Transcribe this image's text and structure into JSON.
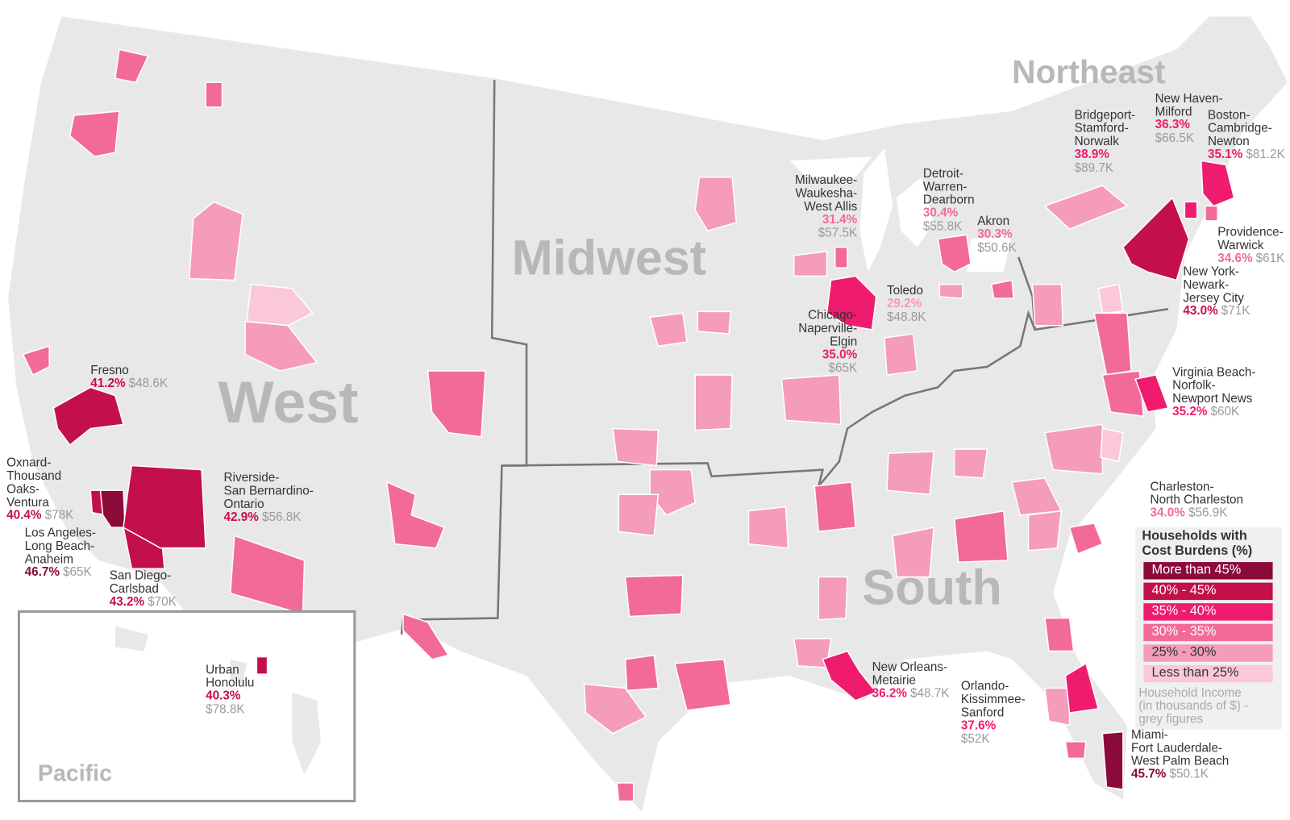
{
  "regions": [
    "West",
    "Midwest",
    "South",
    "Northeast",
    "Pacific"
  ],
  "legend": {
    "title": [
      "Households with",
      "Cost Burdens (%)"
    ],
    "items": [
      {
        "label": "More than 45%",
        "color": "#8b0a3a"
      },
      {
        "label": "40% - 45%",
        "color": "#c4104a"
      },
      {
        "label": "35% - 40%",
        "color": "#ee1b6e"
      },
      {
        "label": "30% - 35%",
        "color": "#f26a9a"
      },
      {
        "label": "25% - 30%",
        "color": "#f59bbc"
      },
      {
        "label": "Less than 25%",
        "color": "#fbc8da"
      }
    ],
    "note": [
      "Household Income",
      "(in thousands of $) -",
      "grey figures"
    ]
  },
  "metros": [
    {
      "name": [
        "Fresno"
      ],
      "pct": "41.2%",
      "income": "$48.6K",
      "color": "#c4104a"
    },
    {
      "name": [
        "Oxnard-",
        "Thousand",
        "Oaks-",
        "Ventura"
      ],
      "pct": "40.4%",
      "income": "$78K",
      "color": "#c4104a"
    },
    {
      "name": [
        "Los Angeles-",
        "Long Beach-",
        "Anaheim"
      ],
      "pct": "46.7%",
      "income": "$65K",
      "color": "#8b0a3a"
    },
    {
      "name": [
        "San Diego-",
        "Carlsbad"
      ],
      "pct": "43.2%",
      "income": "$70K",
      "color": "#c4104a"
    },
    {
      "name": [
        "Riverside-",
        "San Bernardino-",
        "Ontario"
      ],
      "pct": "42.9%",
      "income": "$56.8K",
      "color": "#c4104a"
    },
    {
      "name": [
        "Urban",
        "Honolulu"
      ],
      "pct": "40.3%",
      "income": "$78.8K",
      "color": "#c4104a"
    },
    {
      "name": [
        "Milwaukee-",
        "Waukesha-",
        "West Allis"
      ],
      "pct": "31.4%",
      "income": "$57.5K",
      "color": "#f26a9a"
    },
    {
      "name": [
        "Chicago-",
        "Naperville-",
        "Elgin"
      ],
      "pct": "35.0%",
      "income": "$65K",
      "color": "#ee1b6e"
    },
    {
      "name": [
        "Detroit-",
        "Warren-",
        "Dearborn"
      ],
      "pct": "30.4%",
      "income": "$55.8K",
      "color": "#f26a9a"
    },
    {
      "name": [
        "Akron"
      ],
      "pct": "30.3%",
      "income": "$50.6K",
      "color": "#f26a9a"
    },
    {
      "name": [
        "Toledo"
      ],
      "pct": "29.2%",
      "income": "$48.8K",
      "color": "#f59bbc"
    },
    {
      "name": [
        "Bridgeport-",
        "Stamford-",
        "Norwalk"
      ],
      "pct": "38.9%",
      "income": "$89.7K",
      "color": "#ee1b6e"
    },
    {
      "name": [
        "New Haven-",
        "Milford"
      ],
      "pct": "36.3%",
      "income": "$66.5K",
      "color": "#ee1b6e"
    },
    {
      "name": [
        "Boston-",
        "Cambridge-",
        "Newton"
      ],
      "pct": "35.1%",
      "income": "$81.2K",
      "color": "#ee1b6e"
    },
    {
      "name": [
        "Providence-",
        "Warwick"
      ],
      "pct": "34.6%",
      "income": "$61K",
      "color": "#f26a9a"
    },
    {
      "name": [
        "New York-",
        "Newark-",
        "Jersey City"
      ],
      "pct": "43.0%",
      "income": "$71K",
      "color": "#c4104a"
    },
    {
      "name": [
        "Virginia Beach-",
        "Norfolk-",
        "Newport News"
      ],
      "pct": "35.2%",
      "income": "$60K",
      "color": "#ee1b6e"
    },
    {
      "name": [
        "Charleston-",
        "North Charleston"
      ],
      "pct": "34.0%",
      "income": "$56.9K",
      "color": "#f26a9a"
    },
    {
      "name": [
        "New Orleans-",
        "Metairie"
      ],
      "pct": "36.2%",
      "income": "$48.7K",
      "color": "#ee1b6e"
    },
    {
      "name": [
        "Orlando-",
        "Kissimmee-",
        "Sanford"
      ],
      "pct": "37.6%",
      "income": "$52K",
      "color": "#ee1b6e"
    },
    {
      "name": [
        "Miami-",
        "Fort Lauderdale-",
        "West Palm Beach"
      ],
      "pct": "45.7%",
      "income": "$50.1K",
      "color": "#8b0a3a"
    }
  ]
}
